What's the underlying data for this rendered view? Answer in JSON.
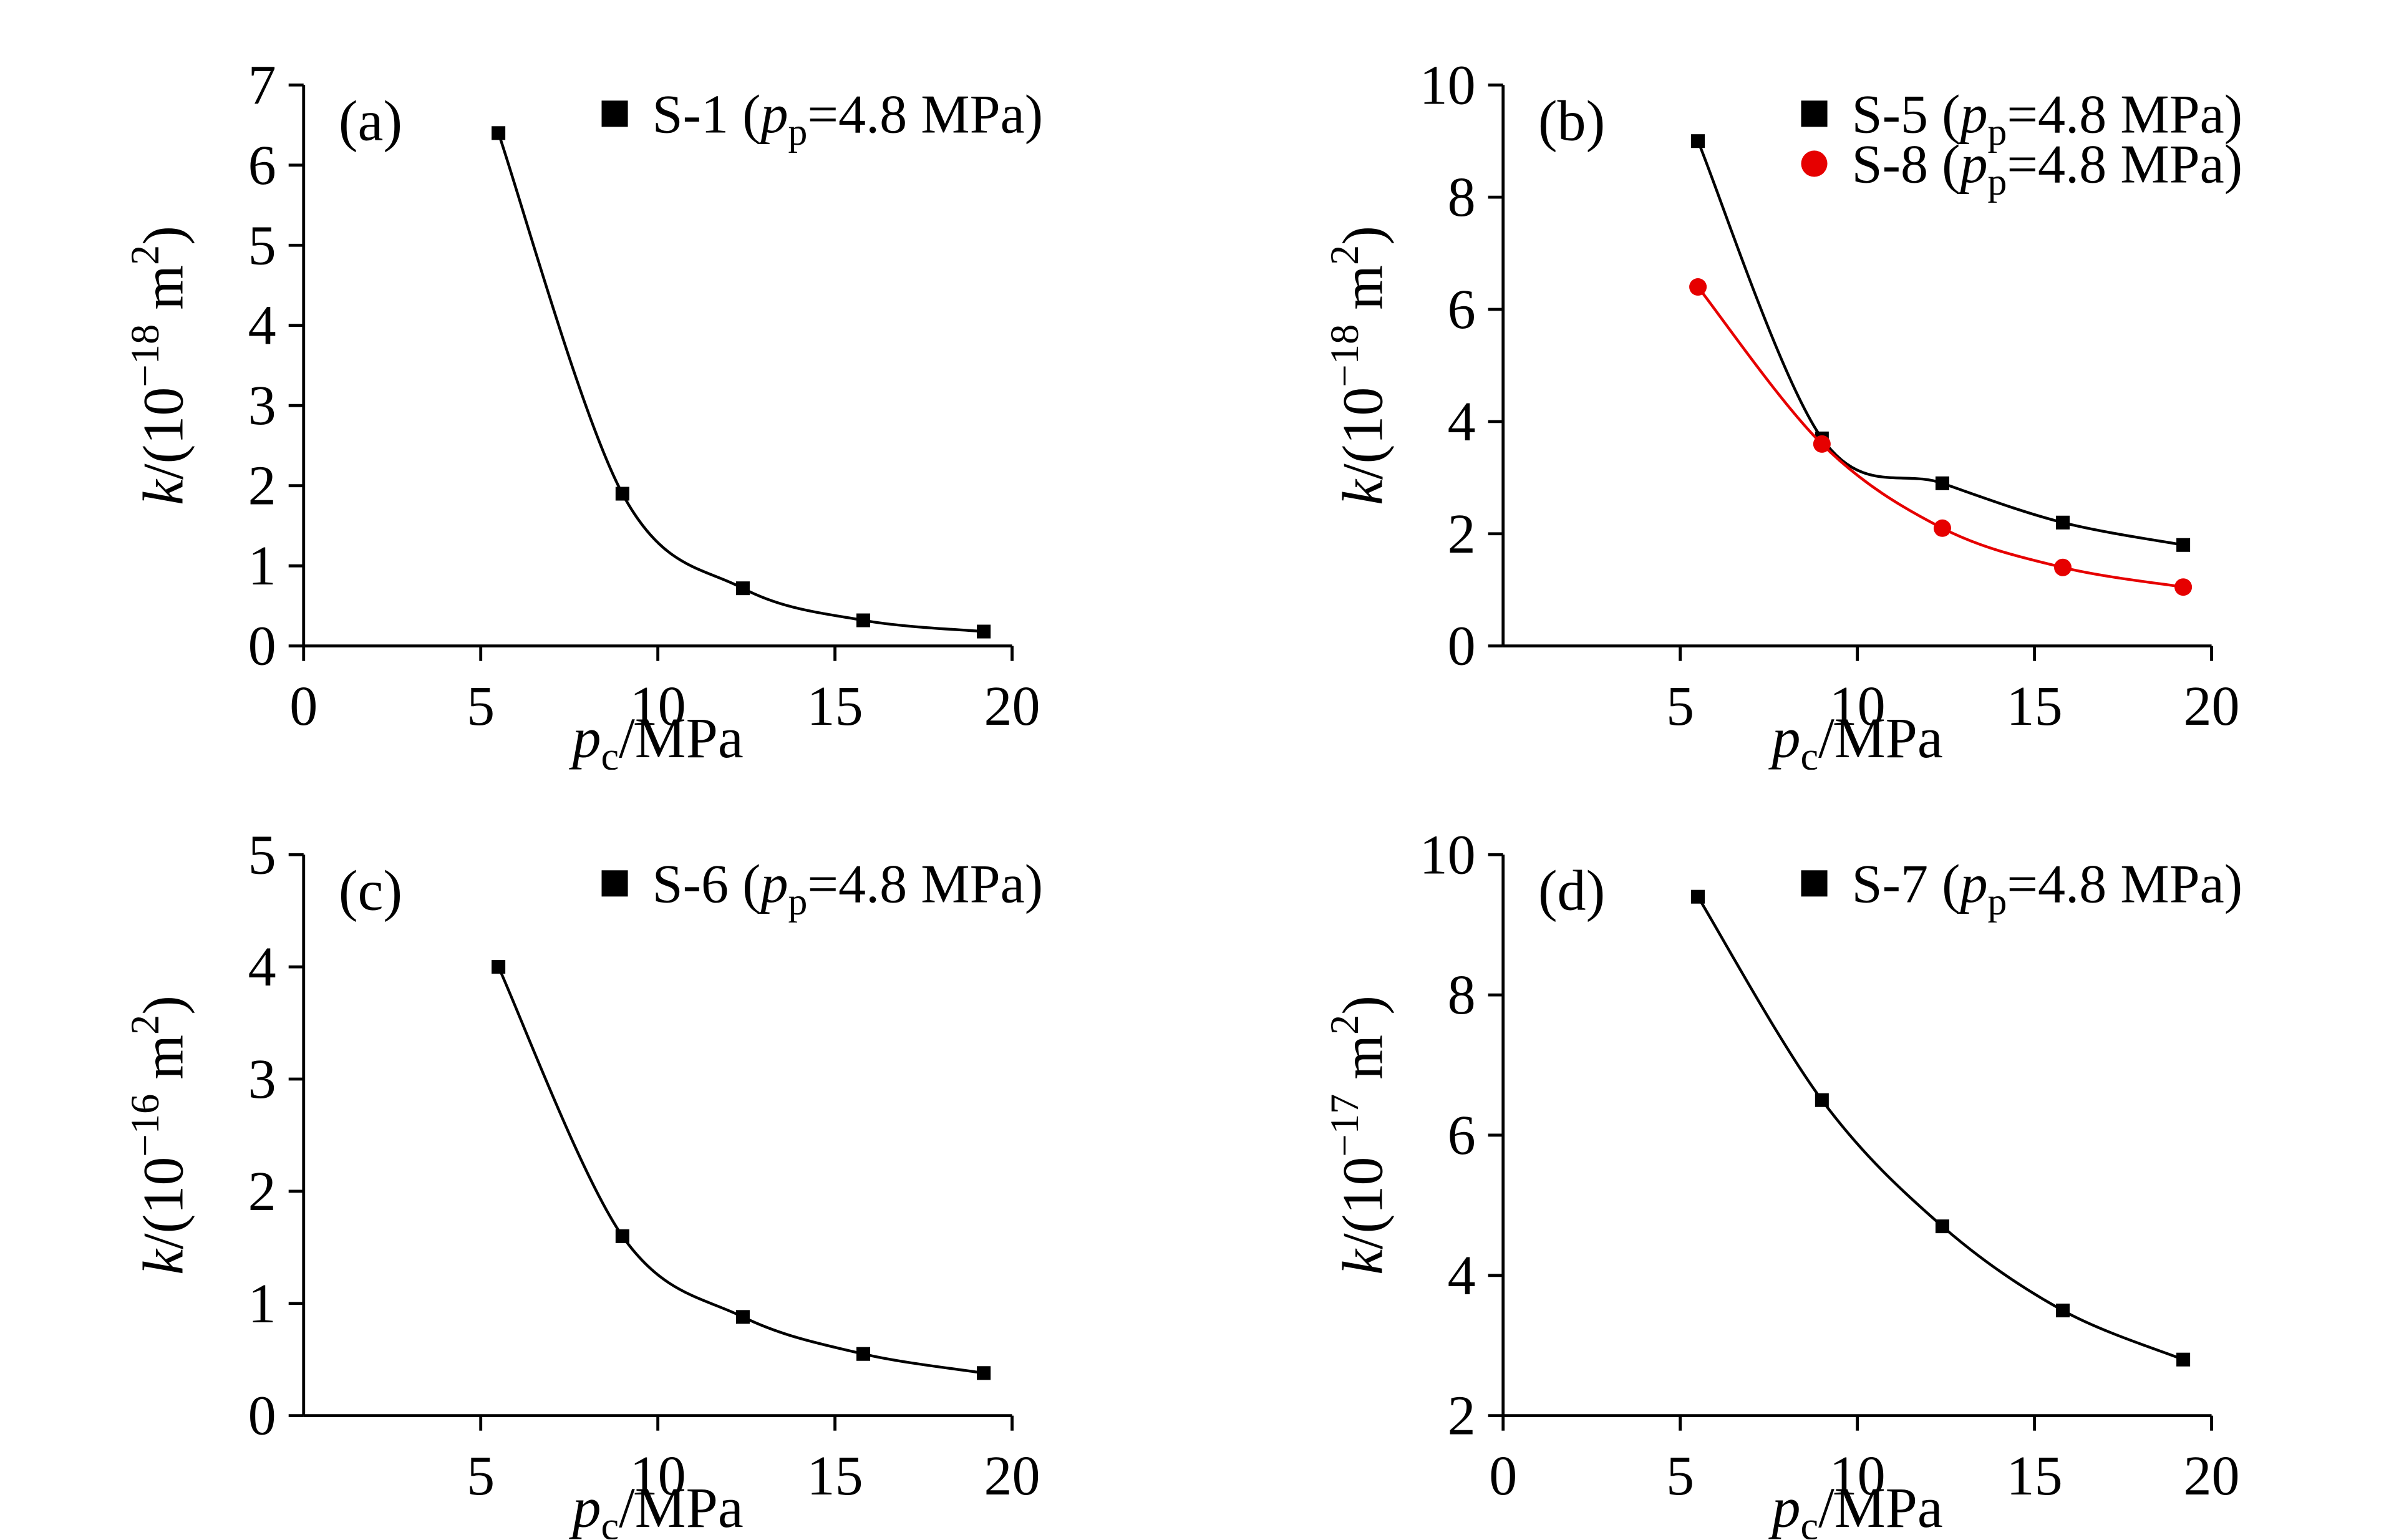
{
  "page": {
    "background": "#ffffff"
  },
  "colors": {
    "black": "#000000",
    "red": "#e60000"
  },
  "chart_data": [
    {
      "id": "a",
      "type": "scatter",
      "panel_label": "(a)",
      "xlabel_text": "pc/MPa",
      "ylabel_text": "k/(10−18 m2)",
      "xlabel_segments": [
        {
          "text": "p",
          "italic": true
        },
        {
          "text": "c",
          "sub": true
        },
        {
          "text": "/MPa"
        }
      ],
      "ylabel_segments": [
        {
          "text": "k",
          "italic": true
        },
        {
          "text": "/(10"
        },
        {
          "text": "−18",
          "sup": true
        },
        {
          "text": " m"
        },
        {
          "text": "2",
          "sup": true
        },
        {
          "text": ")"
        }
      ],
      "xlim": [
        0,
        20
      ],
      "ylim": [
        0,
        7
      ],
      "xticks": [
        0,
        5,
        10,
        15,
        20
      ],
      "yticks": [
        0,
        1,
        2,
        3,
        4,
        5,
        6,
        7
      ],
      "grid": false,
      "legend_position": "top-center",
      "series": [
        {
          "name": "S-1 (pp=4.8 MPa)",
          "name_segments": [
            {
              "text": "S-1 ("
            },
            {
              "text": "p",
              "italic": true
            },
            {
              "text": "p",
              "sub": true
            },
            {
              "text": "=4.8 MPa)"
            }
          ],
          "marker": "square",
          "color": "#000000",
          "line_color": "#000000",
          "x": [
            5.5,
            9.0,
            12.4,
            15.8,
            19.2
          ],
          "y": [
            6.4,
            1.9,
            0.72,
            0.32,
            0.18
          ],
          "fit_curve": true
        }
      ]
    },
    {
      "id": "b",
      "type": "scatter",
      "panel_label": "(b)",
      "xlabel_text": "pc/MPa",
      "ylabel_text": "k/(10−18 m2)",
      "xlabel_segments": [
        {
          "text": "p",
          "italic": true
        },
        {
          "text": "c",
          "sub": true
        },
        {
          "text": "/MPa"
        }
      ],
      "ylabel_segments": [
        {
          "text": "k",
          "italic": true
        },
        {
          "text": "/(10"
        },
        {
          "text": "−18",
          "sup": true
        },
        {
          "text": " m"
        },
        {
          "text": "2",
          "sup": true
        },
        {
          "text": ")"
        }
      ],
      "xlim": [
        0,
        20
      ],
      "ylim": [
        0,
        10
      ],
      "xticks": [
        5,
        10,
        15,
        20
      ],
      "yticks": [
        0,
        2,
        4,
        6,
        8,
        10
      ],
      "grid": false,
      "legend_position": "top-center",
      "series": [
        {
          "name": "S-5 (pp=4.8 MPa)",
          "name_segments": [
            {
              "text": "S-5 ("
            },
            {
              "text": "p",
              "italic": true
            },
            {
              "text": "p",
              "sub": true
            },
            {
              "text": "=4.8 MPa)"
            }
          ],
          "marker": "square",
          "color": "#000000",
          "line_color": "#000000",
          "x": [
            5.5,
            9.0,
            12.4,
            15.8,
            19.2
          ],
          "y": [
            9.0,
            3.7,
            2.9,
            2.2,
            1.8
          ],
          "fit_curve": true
        },
        {
          "name": "S-8 (pp=4.8 MPa)",
          "name_segments": [
            {
              "text": "S-8 ("
            },
            {
              "text": "p",
              "italic": true
            },
            {
              "text": "p",
              "sub": true
            },
            {
              "text": "=4.8 MPa)"
            }
          ],
          "marker": "circle",
          "color": "#e60000",
          "line_color": "#e60000",
          "x": [
            5.5,
            9.0,
            12.4,
            15.8,
            19.2
          ],
          "y": [
            6.4,
            3.6,
            2.1,
            1.4,
            1.05
          ],
          "fit_curve": true
        }
      ]
    },
    {
      "id": "c",
      "type": "scatter",
      "panel_label": "(c)",
      "xlabel_text": "pc/MPa",
      "ylabel_text": "k/(10−16 m2)",
      "xlabel_segments": [
        {
          "text": "p",
          "italic": true
        },
        {
          "text": "c",
          "sub": true
        },
        {
          "text": "/MPa"
        }
      ],
      "ylabel_segments": [
        {
          "text": "k",
          "italic": true
        },
        {
          "text": "/(10"
        },
        {
          "text": "−16",
          "sup": true
        },
        {
          "text": " m"
        },
        {
          "text": "2",
          "sup": true
        },
        {
          "text": ")"
        }
      ],
      "xlim": [
        0,
        20
      ],
      "ylim": [
        0,
        5
      ],
      "xticks": [
        5,
        10,
        15,
        20
      ],
      "yticks": [
        0,
        1,
        2,
        3,
        4,
        5
      ],
      "grid": false,
      "legend_position": "top-center",
      "series": [
        {
          "name": "S-6 (pp=4.8 MPa)",
          "name_segments": [
            {
              "text": "S-6 ("
            },
            {
              "text": "p",
              "italic": true
            },
            {
              "text": "p",
              "sub": true
            },
            {
              "text": "=4.8 MPa)"
            }
          ],
          "marker": "square",
          "color": "#000000",
          "line_color": "#000000",
          "x": [
            5.5,
            9.0,
            12.4,
            15.8,
            19.2
          ],
          "y": [
            4.0,
            1.6,
            0.88,
            0.55,
            0.38
          ],
          "fit_curve": true
        }
      ]
    },
    {
      "id": "d",
      "type": "scatter",
      "panel_label": "(d)",
      "xlabel_text": "pc/MPa",
      "ylabel_text": "k/(10−17 m2)",
      "xlabel_segments": [
        {
          "text": "p",
          "italic": true
        },
        {
          "text": "c",
          "sub": true
        },
        {
          "text": "/MPa"
        }
      ],
      "ylabel_segments": [
        {
          "text": "k",
          "italic": true
        },
        {
          "text": "/(10"
        },
        {
          "text": "−17",
          "sup": true
        },
        {
          "text": " m"
        },
        {
          "text": "2",
          "sup": true
        },
        {
          "text": ")"
        }
      ],
      "xlim": [
        0,
        20
      ],
      "ylim": [
        2,
        10
      ],
      "xticks": [
        0,
        5,
        10,
        15,
        20
      ],
      "yticks": [
        2,
        4,
        6,
        8,
        10
      ],
      "grid": false,
      "legend_position": "top-center",
      "series": [
        {
          "name": "S-7 (pp=4.8 MPa)",
          "name_segments": [
            {
              "text": "S-7 ("
            },
            {
              "text": "p",
              "italic": true
            },
            {
              "text": "p",
              "sub": true
            },
            {
              "text": "=4.8 MPa)"
            }
          ],
          "marker": "square",
          "color": "#000000",
          "line_color": "#000000",
          "x": [
            5.5,
            9.0,
            12.4,
            15.8,
            19.2
          ],
          "y": [
            9.4,
            6.5,
            4.7,
            3.5,
            2.8
          ],
          "fit_curve": true
        }
      ]
    }
  ]
}
